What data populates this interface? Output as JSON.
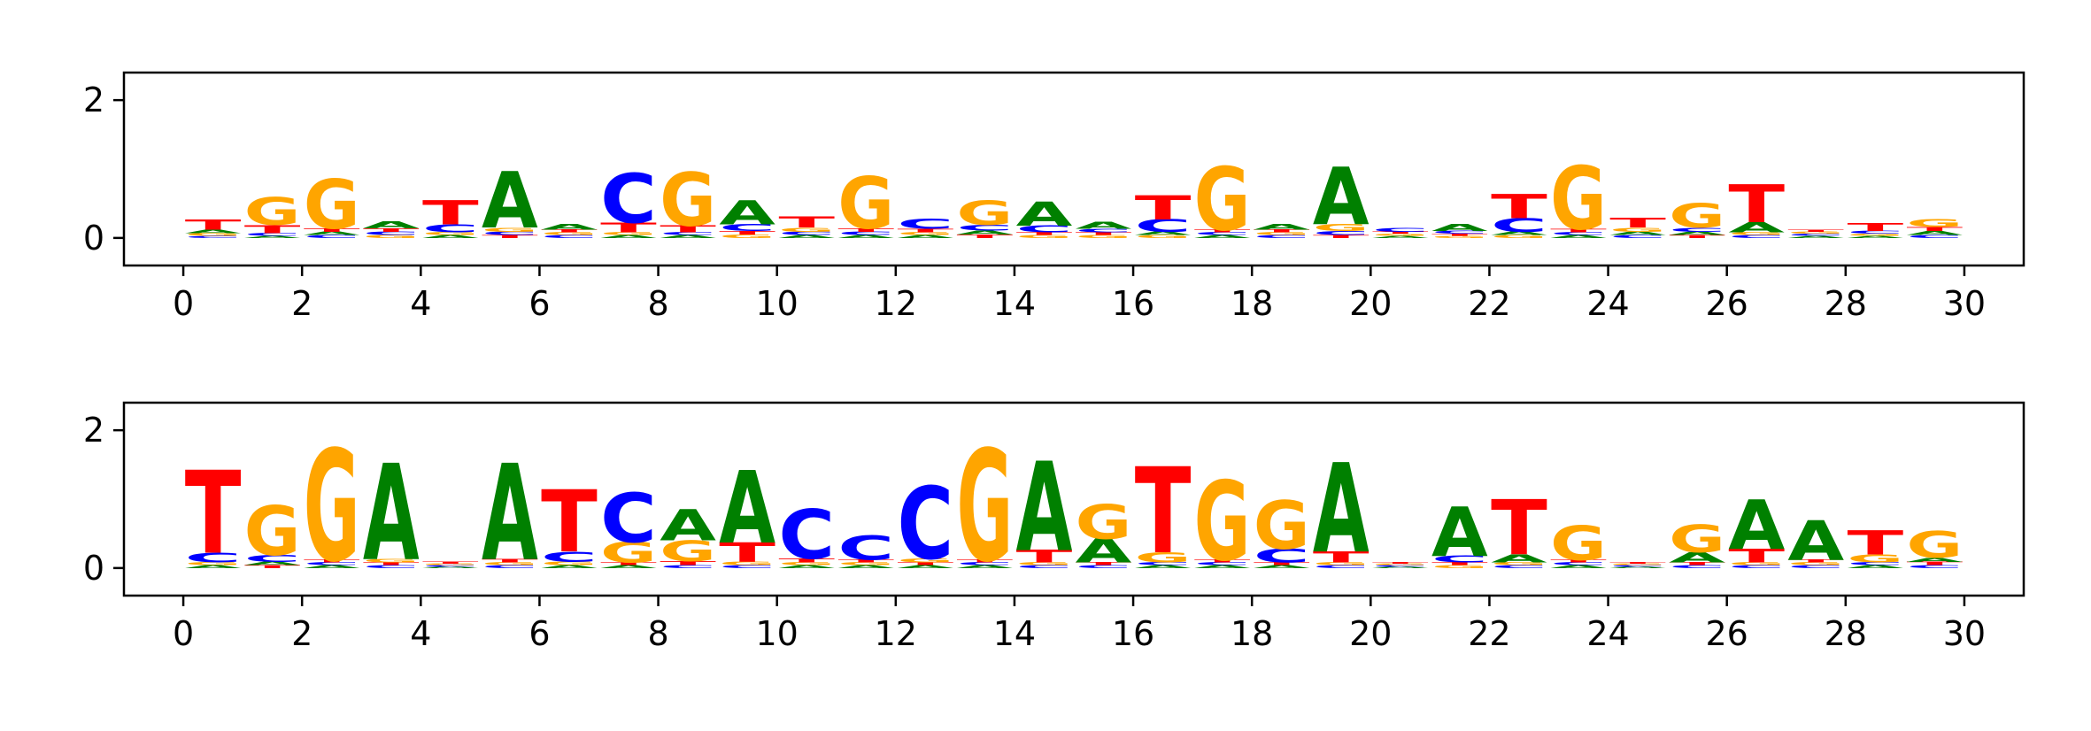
{
  "chart_data": [
    {
      "type": "sequence-logo",
      "alphabet": [
        "A",
        "C",
        "G",
        "T"
      ],
      "colors": {
        "A": "#008000",
        "C": "#0000ff",
        "G": "#ffa500",
        "T": "#ff0000"
      },
      "xlim": [
        -1,
        31
      ],
      "ylim": [
        -0.4,
        2.4
      ],
      "xticks": [
        0,
        2,
        4,
        6,
        8,
        10,
        12,
        14,
        16,
        18,
        20,
        22,
        24,
        26,
        28,
        30
      ],
      "yticks": [
        0,
        2
      ],
      "positions": [
        [
          0.05,
          0.03,
          0.04,
          0.15
        ],
        [
          0.03,
          0.04,
          0.4,
          0.12
        ],
        [
          0.05,
          0.04,
          0.72,
          0.05
        ],
        [
          0.1,
          0.05,
          0.04,
          0.05
        ],
        [
          0.04,
          0.12,
          0.04,
          0.35
        ],
        [
          0.82,
          0.05,
          0.06,
          0.04
        ],
        [
          0.08,
          0.04,
          0.04,
          0.04
        ],
        [
          0.04,
          0.72,
          0.04,
          0.14
        ],
        [
          0.04,
          0.04,
          0.78,
          0.1
        ],
        [
          0.35,
          0.1,
          0.05,
          0.05
        ],
        [
          0.04,
          0.05,
          0.06,
          0.16
        ],
        [
          0.04,
          0.05,
          0.75,
          0.05
        ],
        [
          0.04,
          0.15,
          0.04,
          0.05
        ],
        [
          0.06,
          0.08,
          0.35,
          0.05
        ],
        [
          0.35,
          0.1,
          0.04,
          0.04
        ],
        [
          0.1,
          0.05,
          0.04,
          0.04
        ],
        [
          0.05,
          0.18,
          0.04,
          0.35
        ],
        [
          0.04,
          0.04,
          0.92,
          0.04
        ],
        [
          0.08,
          0.04,
          0.04,
          0.04
        ],
        [
          0.84,
          0.06,
          0.1,
          0.04
        ],
        [
          0.03,
          0.06,
          0.03,
          0.03
        ],
        [
          0.1,
          0.04,
          0.03,
          0.03
        ],
        [
          0.05,
          0.2,
          0.04,
          0.35
        ],
        [
          0.04,
          0.04,
          0.92,
          0.05
        ],
        [
          0.05,
          0.04,
          0.06,
          0.14
        ],
        [
          0.05,
          0.06,
          0.35,
          0.04
        ],
        [
          0.15,
          0.04,
          0.04,
          0.55
        ],
        [
          0.03,
          0.03,
          0.03,
          0.03
        ],
        [
          0.03,
          0.04,
          0.03,
          0.12
        ],
        [
          0.06,
          0.04,
          0.12,
          0.06
        ]
      ]
    },
    {
      "type": "sequence-logo",
      "alphabet": [
        "A",
        "C",
        "G",
        "T"
      ],
      "colors": {
        "A": "#008000",
        "C": "#0000ff",
        "G": "#ffa500",
        "T": "#ff0000"
      },
      "xlim": [
        -1,
        31
      ],
      "ylim": [
        -0.4,
        2.4
      ],
      "xticks": [
        0,
        2,
        4,
        6,
        8,
        10,
        12,
        14,
        16,
        18,
        20,
        22,
        24,
        26,
        28,
        30
      ],
      "yticks": [
        0,
        2
      ],
      "positions": [
        [
          0.04,
          0.14,
          0.04,
          1.2
        ],
        [
          0.05,
          0.1,
          0.72,
          0.04
        ],
        [
          0.04,
          0.04,
          1.62,
          0.04
        ],
        [
          1.4,
          0.04,
          0.05,
          0.04
        ],
        [
          0.02,
          0.02,
          0.02,
          0.03
        ],
        [
          1.4,
          0.04,
          0.04,
          0.05
        ],
        [
          0.04,
          0.15,
          0.05,
          0.9
        ],
        [
          0.04,
          0.72,
          0.3,
          0.04
        ],
        [
          0.45,
          0.04,
          0.3,
          0.06
        ],
        [
          1.05,
          0.04,
          0.05,
          0.28
        ],
        [
          0.04,
          0.72,
          0.04,
          0.06
        ],
        [
          0.04,
          0.35,
          0.04,
          0.04
        ],
        [
          0.04,
          1.05,
          0.06,
          0.04
        ],
        [
          0.04,
          0.04,
          1.62,
          0.04
        ],
        [
          1.3,
          0.04,
          0.04,
          0.18
        ],
        [
          0.35,
          0.04,
          0.5,
          0.04
        ],
        [
          0.04,
          0.04,
          0.15,
          1.25
        ],
        [
          0.04,
          0.04,
          1.15,
          0.04
        ],
        [
          0.04,
          0.2,
          0.7,
          0.04
        ],
        [
          1.3,
          0.04,
          0.04,
          0.16
        ],
        [
          0.02,
          0.02,
          0.02,
          0.02
        ],
        [
          0.72,
          0.1,
          0.04,
          0.04
        ],
        [
          0.12,
          0.04,
          0.04,
          0.8
        ],
        [
          0.04,
          0.04,
          0.5,
          0.04
        ],
        [
          0.02,
          0.02,
          0.02,
          0.02
        ],
        [
          0.15,
          0.04,
          0.4,
          0.04
        ],
        [
          0.72,
          0.04,
          0.04,
          0.2
        ],
        [
          0.58,
          0.04,
          0.04,
          0.04
        ],
        [
          0.04,
          0.04,
          0.12,
          0.35
        ],
        [
          0.06,
          0.04,
          0.38,
          0.05
        ]
      ]
    }
  ]
}
